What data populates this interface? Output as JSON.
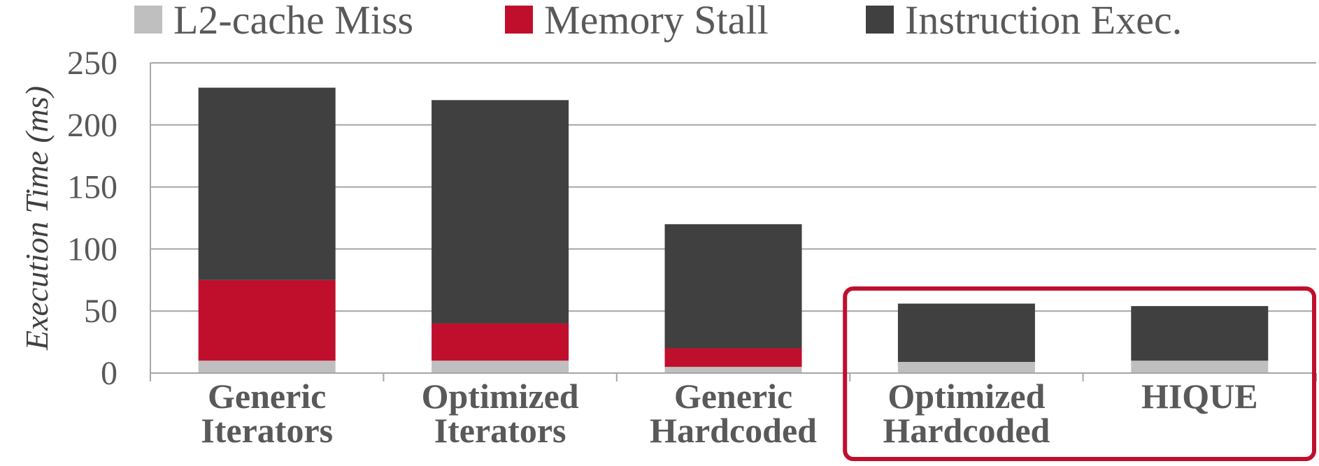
{
  "chart_data": {
    "type": "bar",
    "stacked": true,
    "categories": [
      [
        "Generic",
        "Iterators"
      ],
      [
        "Optimized",
        "Iterators"
      ],
      [
        "Generic",
        "Hardcoded"
      ],
      [
        "Optimized",
        "Hardcoded"
      ],
      [
        "HIQUE"
      ]
    ],
    "series": [
      {
        "name": "L2-cache Miss",
        "color": "#bfbfbf",
        "values": [
          10,
          10,
          5,
          9,
          10
        ]
      },
      {
        "name": "Memory Stall",
        "color": "#c00f2d",
        "values": [
          65,
          30,
          15,
          0,
          0
        ]
      },
      {
        "name": "Instruction Exec.",
        "color": "#404040",
        "values": [
          155,
          180,
          100,
          47,
          44
        ]
      }
    ],
    "ylabel": "Execution Time (ms)",
    "ylim": [
      0,
      250
    ],
    "yticks": [
      0,
      50,
      100,
      150,
      200,
      250
    ],
    "grid": true,
    "legend": "top",
    "highlight": {
      "categories": [
        3,
        4
      ],
      "color": "#c00f2d"
    }
  }
}
